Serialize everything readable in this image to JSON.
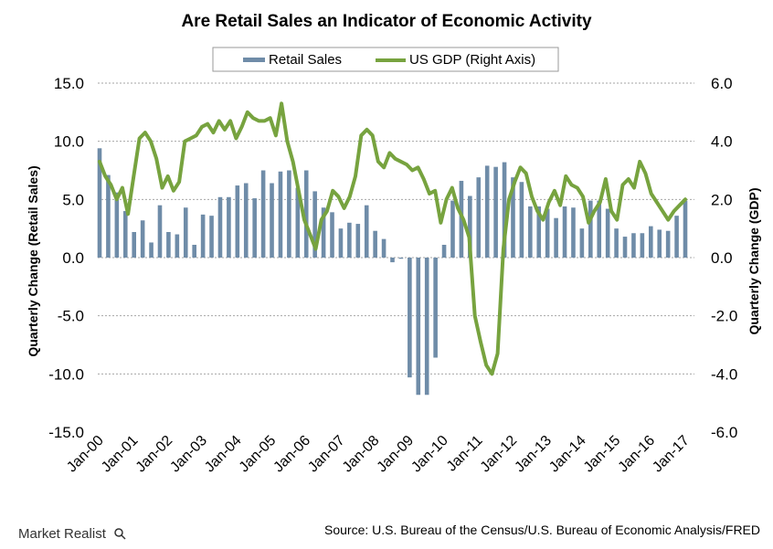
{
  "chart_data": {
    "type": "bar",
    "title": "Are Retail Sales an Indicator  of Economic Activity",
    "ylabel": "Quarterly Change (Retail Sales)",
    "y2label": "Quarterly Change (GDP)",
    "ylim": [
      -15,
      15
    ],
    "y2lim": [
      -6,
      6
    ],
    "yticks": [
      "15.0",
      "10.0",
      "5.0",
      "0.0",
      "-5.0",
      "-10.0",
      "-15.0"
    ],
    "y2ticks": [
      "6.0",
      "4.0",
      "2.0",
      "0.0",
      "-2.0",
      "-4.0",
      "-6.0"
    ],
    "xticks": [
      "Jan-00",
      "Jan-01",
      "Jan-02",
      "Jan-03",
      "Jan-04",
      "Jan-05",
      "Jan-06",
      "Jan-07",
      "Jan-08",
      "Jan-09",
      "Jan-10",
      "Jan-11",
      "Jan-12",
      "Jan-13",
      "Jan-14",
      "Jan-15",
      "Jan-16",
      "Jan-17"
    ],
    "grid": true,
    "legend_position": "top",
    "colors": {
      "retail": "#6f8ca8",
      "gdp": "#77a33f",
      "grid": "#a6a6a6"
    },
    "series": [
      {
        "name": "Retail Sales",
        "type": "bar",
        "axis": "left",
        "start": "Jan-00",
        "values": [
          9.4,
          7.1,
          5.6,
          4.0,
          2.2,
          3.2,
          1.3,
          4.5,
          2.2,
          2.0,
          4.3,
          1.1,
          3.7,
          3.6,
          5.2,
          5.2,
          6.2,
          6.4,
          5.1,
          7.5,
          6.4,
          7.4,
          7.5,
          6.0,
          7.5,
          5.7,
          4.3,
          3.9,
          2.5,
          3.0,
          2.9,
          4.5,
          2.3,
          1.6,
          -0.4,
          -0.1,
          -10.3,
          -11.8,
          -11.8,
          -8.6,
          1.1,
          4.9,
          6.6,
          5.3,
          6.9,
          7.9,
          7.8,
          8.2,
          6.9,
          6.5,
          4.4,
          4.4,
          4.2,
          3.4,
          4.4,
          4.3,
          2.5,
          4.9,
          4.9,
          4.2,
          2.5,
          1.8,
          2.1,
          2.1,
          2.7,
          2.4,
          2.3,
          3.6,
          4.9
        ]
      },
      {
        "name": "US GDP (Right Axis)",
        "type": "line",
        "axis": "right",
        "start": "Jan-00",
        "values": [
          3.3,
          2.8,
          2.5,
          2.0,
          2.4,
          1.5,
          2.8,
          4.1,
          4.3,
          4.0,
          3.4,
          2.4,
          2.8,
          2.3,
          2.6,
          4.0,
          4.1,
          4.2,
          4.5,
          4.6,
          4.3,
          4.7,
          4.4,
          4.7,
          4.1,
          4.5,
          5.0,
          4.8,
          4.7,
          4.7,
          4.8,
          4.2,
          5.3,
          4.0,
          3.3,
          2.3,
          1.3,
          0.8,
          0.3,
          1.3,
          1.6,
          2.3,
          2.1,
          1.7,
          2.1,
          2.8,
          4.2,
          4.4,
          4.2,
          3.3,
          3.1,
          3.6,
          3.4,
          3.3,
          3.2,
          3.0,
          3.1,
          2.7,
          2.2,
          2.3,
          1.2,
          2.0,
          2.4,
          1.7,
          1.3,
          0.7,
          -2.0,
          -2.9,
          -3.7,
          -4.0,
          -3.3,
          0.3,
          2.0,
          2.6,
          3.1,
          2.9,
          2.1,
          1.6,
          1.3,
          1.9,
          2.3,
          1.8,
          2.8,
          2.5,
          2.4,
          2.1,
          1.2,
          1.6,
          1.9,
          2.7,
          1.6,
          1.3,
          2.5,
          2.7,
          2.4,
          3.3,
          2.9,
          2.2,
          1.9,
          1.6,
          1.3,
          1.6,
          1.8,
          2.0
        ]
      }
    ]
  },
  "source": "Source: U.S. Bureau of the Census/U.S. Bureau of Economic Analysis/FRED",
  "brand": "Market Realist"
}
